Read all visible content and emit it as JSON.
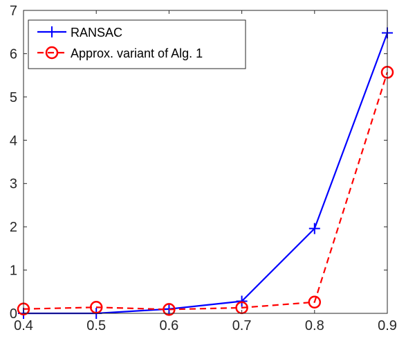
{
  "chart_data": {
    "type": "line",
    "x": [
      0.4,
      0.5,
      0.6,
      0.7,
      0.8,
      0.9
    ],
    "xlim": [
      0.4,
      0.9
    ],
    "ylim": [
      0,
      7
    ],
    "x_ticks": [
      "0.4",
      "0.5",
      "0.6",
      "0.7",
      "0.8",
      "0.9"
    ],
    "y_ticks": [
      "0",
      "1",
      "2",
      "3",
      "4",
      "5",
      "6",
      "7"
    ],
    "grid": false,
    "legend_position": "top-left",
    "series": [
      {
        "name": "RANSAC",
        "values": [
          0.0,
          0.0,
          0.1,
          0.28,
          1.96,
          6.48
        ],
        "color": "#0000ff",
        "line_style": "solid",
        "marker": "plus"
      },
      {
        "name": "Approx. variant of Alg. 1",
        "values": [
          0.1,
          0.14,
          0.09,
          0.13,
          0.26,
          5.57
        ],
        "color": "#ff0000",
        "line_style": "dashed",
        "marker": "circle"
      }
    ]
  }
}
